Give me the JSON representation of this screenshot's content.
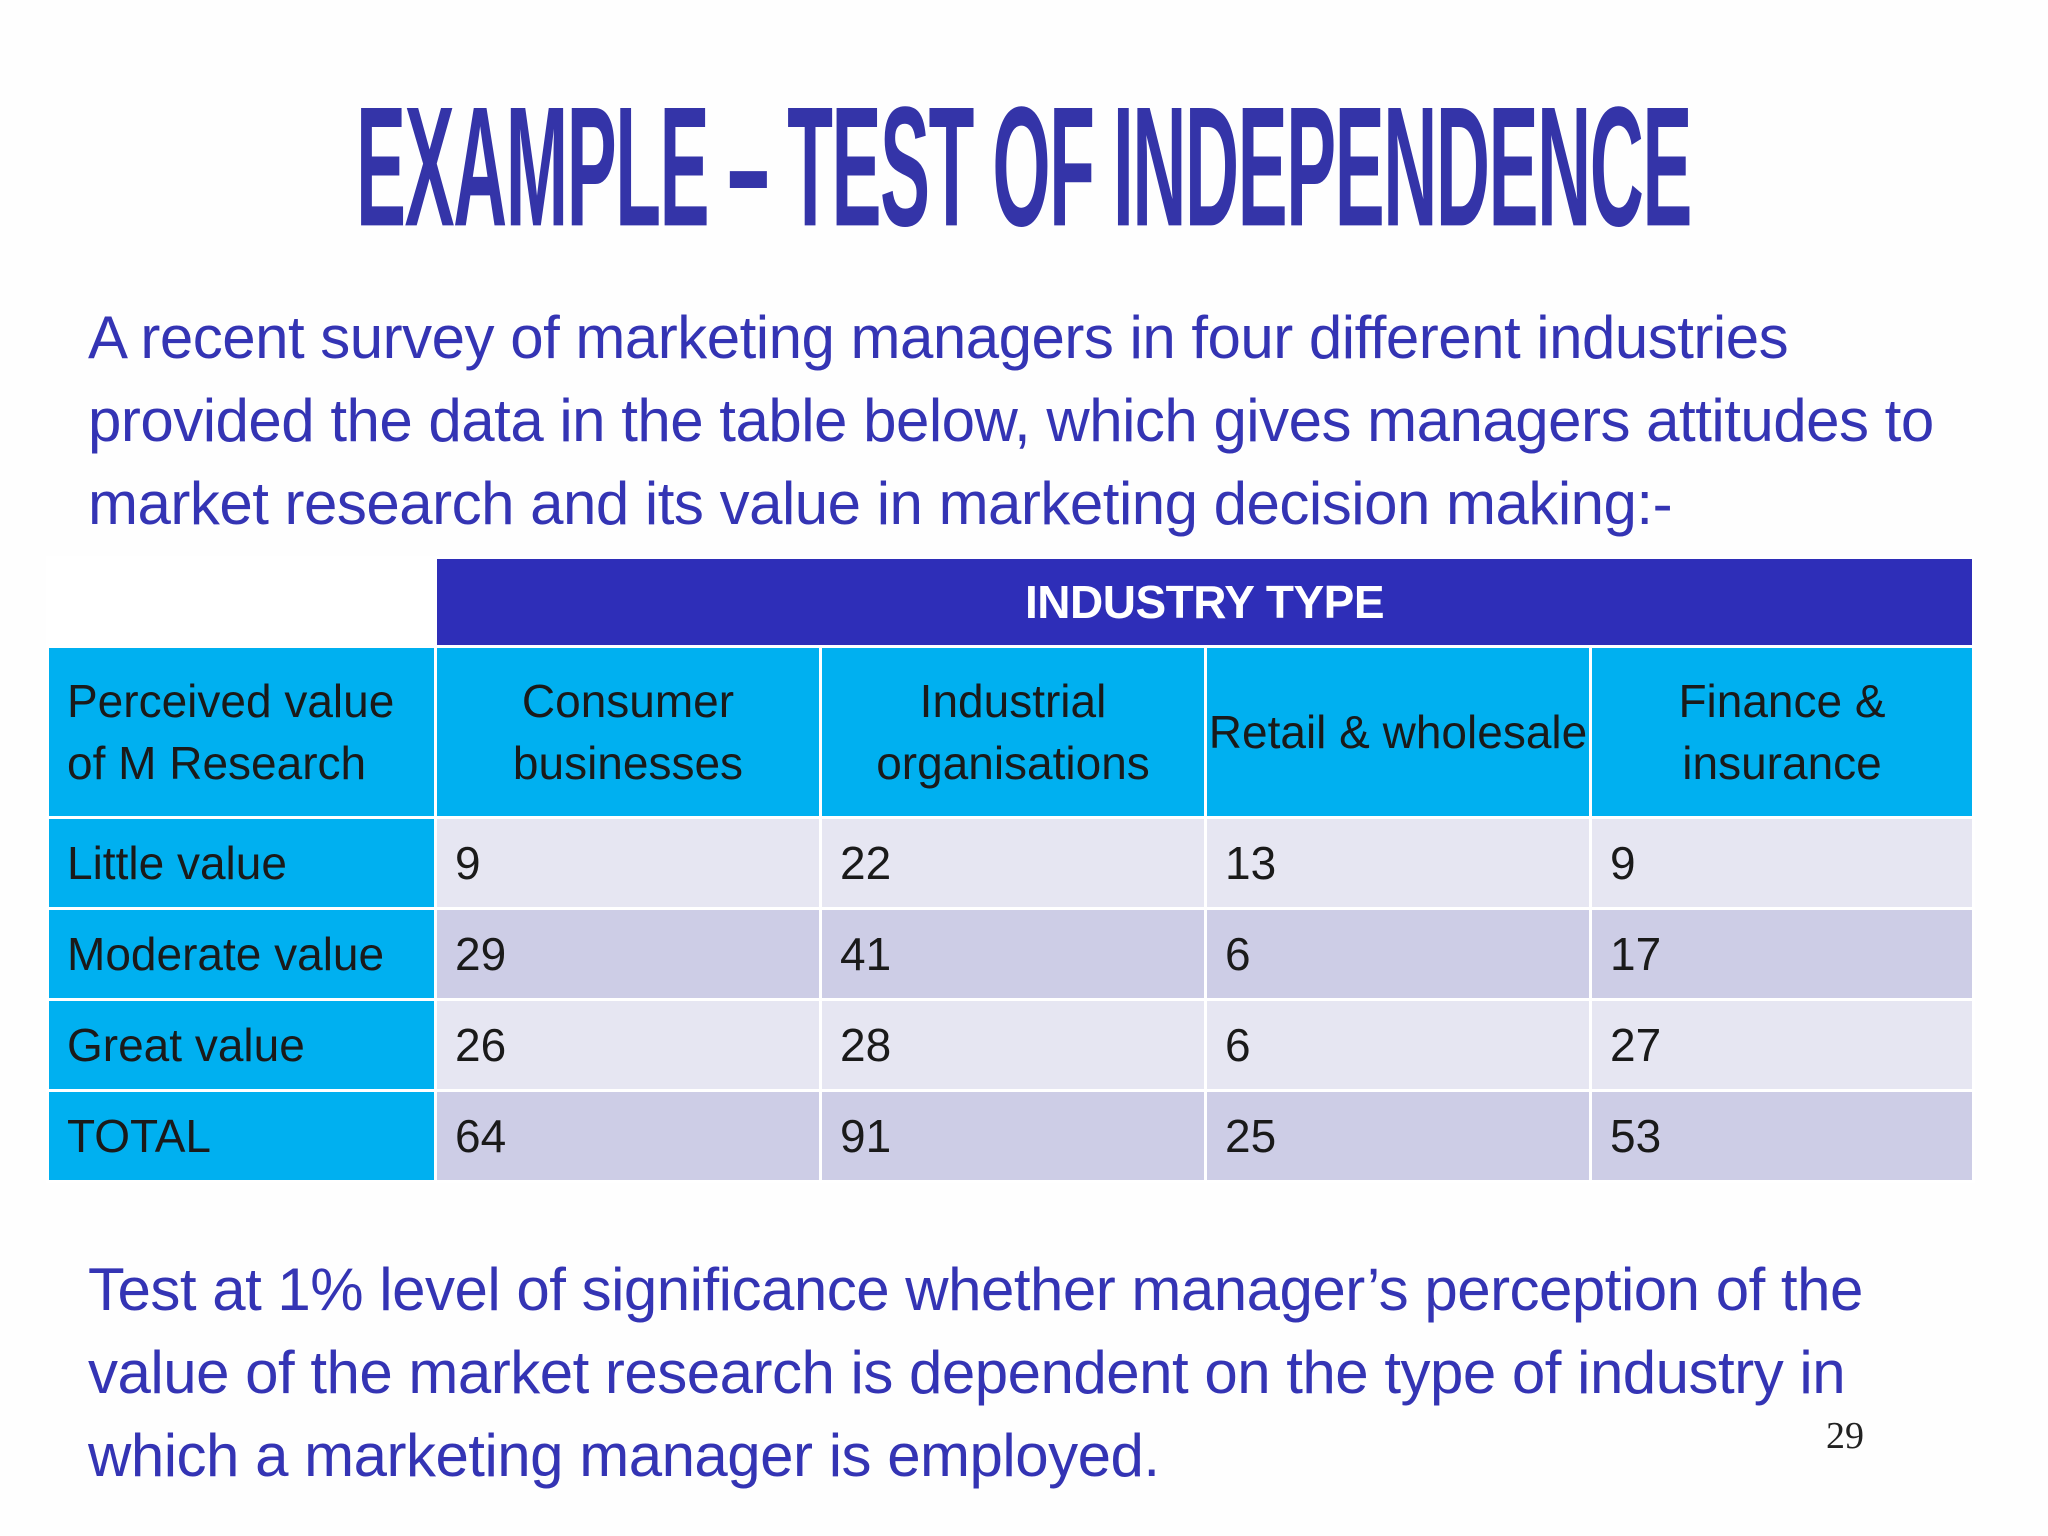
{
  "slide": {
    "title": "EXAMPLE – TEST OF INDEPENDENCE",
    "intro": "A recent survey of marketing managers in four different industries provided the data in the table below, which gives managers attitudes to market research and its value in marketing decision making:-",
    "question": "Test at 1% level of significance whether manager’s perception of the value of the market research is dependent on the type of industry in which a marketing manager is employed.",
    "page_number": "29"
  },
  "table": {
    "group_header": "INDUSTRY TYPE",
    "row_header_label": "Perceived value of M Research",
    "columns": [
      "Consumer businesses",
      "Industrial organisations",
      "Retail & wholesale",
      "Finance & insurance"
    ],
    "rows": [
      {
        "label": "Little value",
        "values": [
          "9",
          "22",
          "13",
          "9"
        ]
      },
      {
        "label": "Moderate value",
        "values": [
          "29",
          "41",
          "6",
          "17"
        ]
      },
      {
        "label": "Great value",
        "values": [
          "26",
          "28",
          "6",
          "27"
        ]
      },
      {
        "label": "TOTAL",
        "values": [
          "64",
          "91",
          "25",
          "53"
        ]
      }
    ]
  },
  "colors": {
    "title": "#3434a8",
    "body_text": "#3434b4",
    "group_header_bg": "#2e2eb8",
    "header_bg": "#00b0f0",
    "row_light": "#e6e6f2",
    "row_dark": "#cdcde6"
  }
}
